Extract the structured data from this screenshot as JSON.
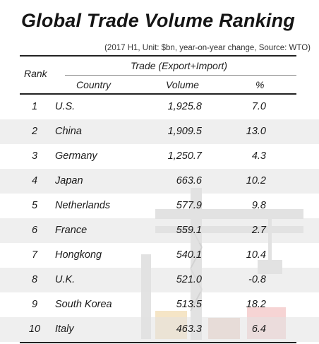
{
  "title": "Global Trade Volume Ranking",
  "subtitle": "(2017 H1, Unit: $bn, year-on-year change, Source: WTO)",
  "header": {
    "rank": "Rank",
    "group": "Trade (Export+Import)",
    "country": "Country",
    "volume": "Volume",
    "pct": "%"
  },
  "rows": [
    {
      "rank": "1",
      "country": "U.S.",
      "volume": "1,925.8",
      "pct": "7.0"
    },
    {
      "rank": "2",
      "country": "China",
      "volume": "1,909.5",
      "pct": "13.0"
    },
    {
      "rank": "3",
      "country": "Germany",
      "volume": "1,250.7",
      "pct": "4.3"
    },
    {
      "rank": "4",
      "country": "Japan",
      "volume": "663.6",
      "pct": "10.2"
    },
    {
      "rank": "5",
      "country": "Netherlands",
      "volume": "577.9",
      "pct": "9.8"
    },
    {
      "rank": "6",
      "country": "France",
      "volume": "559.1",
      "pct": "2.7"
    },
    {
      "rank": "7",
      "country": "Hongkong",
      "volume": "540.1",
      "pct": "10.4"
    },
    {
      "rank": "8",
      "country": "U.K.",
      "volume": "521.0",
      "pct": "-0.8"
    },
    {
      "rank": "9",
      "country": "South Korea",
      "volume": "513.5",
      "pct": "18.2"
    },
    {
      "rank": "10",
      "country": "Italy",
      "volume": "463.3",
      "pct": "6.4"
    }
  ]
}
